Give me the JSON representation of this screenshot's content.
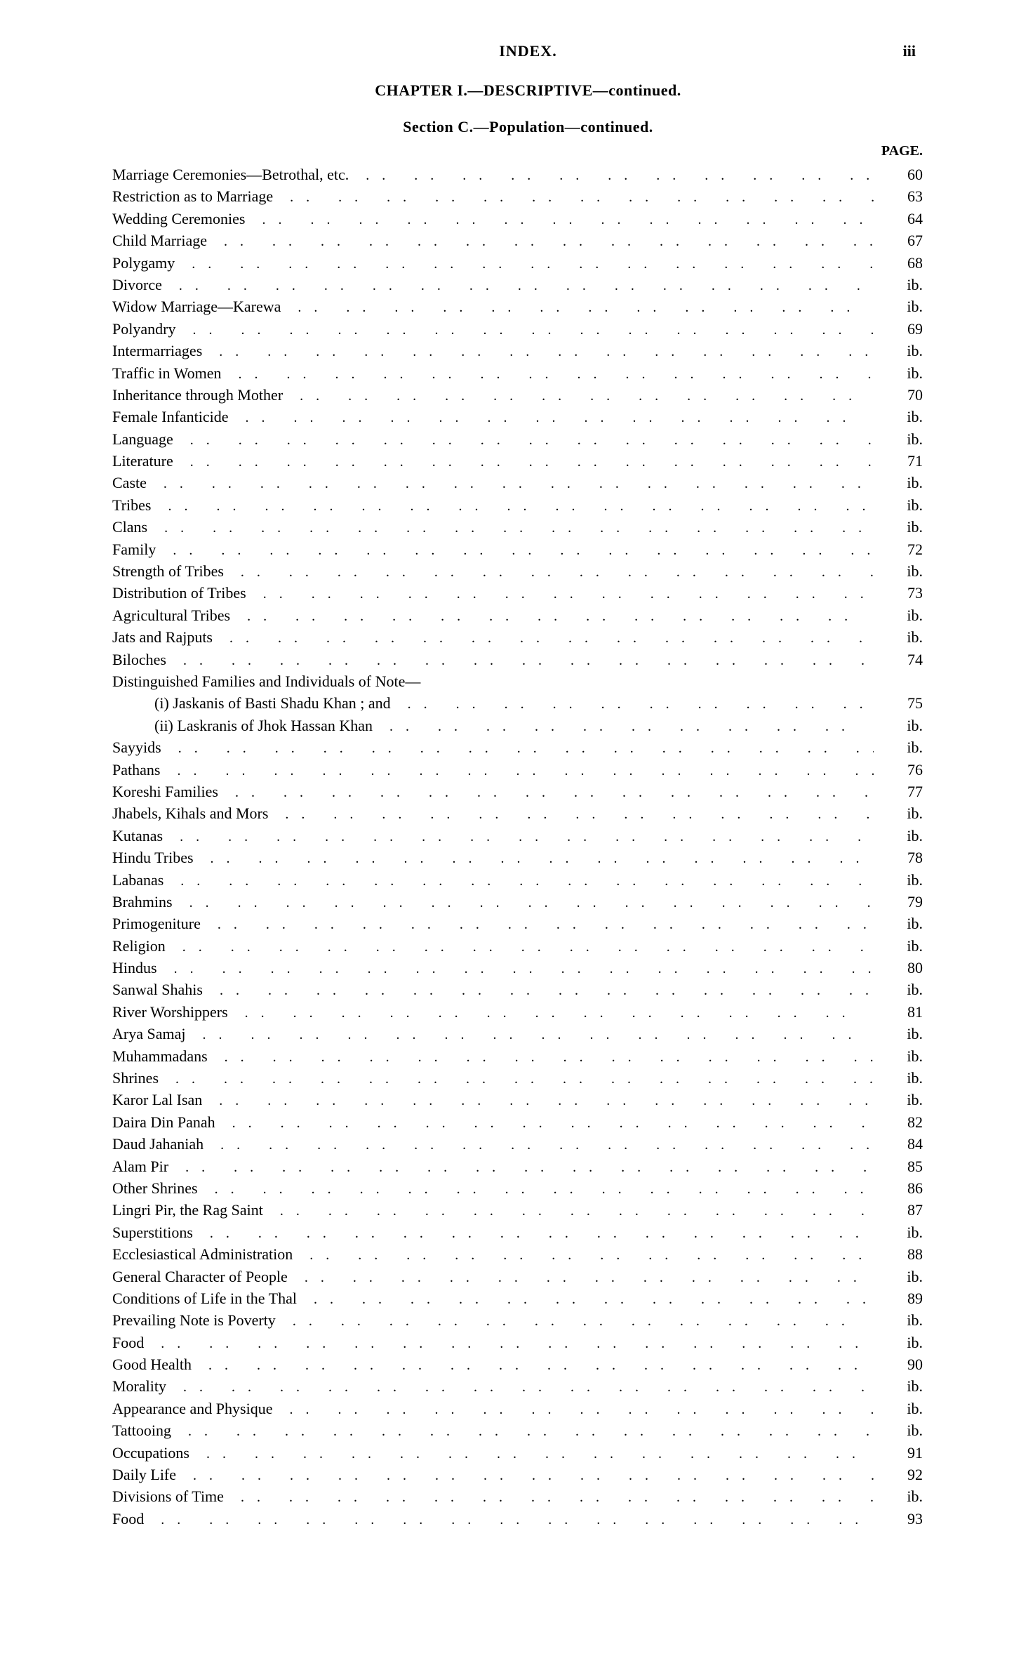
{
  "running_head": "INDEX.",
  "page_number_top": "iii",
  "chapter_line": "CHAPTER I.—DESCRIPTIVE—continued.",
  "section_line": "Section C.—Population—continued.",
  "page_column_head": "PAGE.",
  "leader_glyph": ".. .. .. .. .. .. .. .. .. .. .. .. .. .. .. .. ..",
  "entries": [
    {
      "label": "Marriage Ceremonies—Betrothal, etc.",
      "page": "60"
    },
    {
      "label": "Restriction as to Marriage",
      "page": "63"
    },
    {
      "label": "Wedding Ceremonies",
      "page": "64"
    },
    {
      "label": "Child Marriage",
      "page": "67"
    },
    {
      "label": "Polygamy",
      "page": "68"
    },
    {
      "label": "Divorce",
      "page": "ib."
    },
    {
      "label": "Widow Marriage—Karewa",
      "page": "ib."
    },
    {
      "label": "Polyandry",
      "page": "69"
    },
    {
      "label": "Intermarriages",
      "page": "ib."
    },
    {
      "label": "Traffic in Women",
      "page": "ib."
    },
    {
      "label": "Inheritance through Mother",
      "page": "70"
    },
    {
      "label": "Female Infanticide",
      "page": "ib."
    },
    {
      "label": "Language",
      "page": "ib."
    },
    {
      "label": "Literature",
      "page": "71"
    },
    {
      "label": "Caste",
      "page": "ib."
    },
    {
      "label": "Tribes",
      "page": "ib."
    },
    {
      "label": "Clans",
      "page": "ib."
    },
    {
      "label": "Family",
      "page": "72"
    },
    {
      "label": "Strength of Tribes",
      "page": "ib."
    },
    {
      "label": "Distribution of Tribes",
      "page": "73"
    },
    {
      "label": "Agricultural Tribes",
      "page": "ib."
    },
    {
      "label": "Jats and Rajputs",
      "page": "ib."
    },
    {
      "label": "Biloches",
      "page": "74"
    },
    {
      "label": "Distinguished Families and Individuals of Note—",
      "page": "",
      "no_leader": true
    },
    {
      "label": "(i) Jaskanis of Basti Shadu Khan ; and",
      "page": "75",
      "indent": true
    },
    {
      "label": "(ii) Laskranis of Jhok Hassan Khan",
      "page": "ib.",
      "indent": true
    },
    {
      "label": "Sayyids",
      "page": "ib."
    },
    {
      "label": "Pathans",
      "page": "76"
    },
    {
      "label": "Koreshi Families",
      "page": "77"
    },
    {
      "label": "Jhabels, Kihals and Mors",
      "page": "ib."
    },
    {
      "label": "Kutanas",
      "page": "ib."
    },
    {
      "label": "Hindu Tribes",
      "page": "78"
    },
    {
      "label": "Labanas",
      "page": "ib."
    },
    {
      "label": "Brahmins",
      "page": "79"
    },
    {
      "label": "Primogeniture",
      "page": "ib."
    },
    {
      "label": "Religion",
      "page": "ib."
    },
    {
      "label": "Hindus",
      "page": "80"
    },
    {
      "label": "Sanwal Shahis",
      "page": "ib."
    },
    {
      "label": "River Worshippers",
      "page": "81"
    },
    {
      "label": "Arya Samaj",
      "page": "ib."
    },
    {
      "label": "Muhammadans",
      "page": "ib."
    },
    {
      "label": "Shrines",
      "page": "ib."
    },
    {
      "label": "Karor Lal Isan",
      "page": "ib."
    },
    {
      "label": "Daira Din Panah",
      "page": "82"
    },
    {
      "label": "Daud Jahaniah",
      "page": "84"
    },
    {
      "label": "Alam Pir",
      "page": "85"
    },
    {
      "label": "Other Shrines",
      "page": "86"
    },
    {
      "label": "Lingri Pir, the Rag Saint",
      "page": "87"
    },
    {
      "label": "Superstitions",
      "page": "ib."
    },
    {
      "label": "Ecclesiastical Administration",
      "page": "88"
    },
    {
      "label": "General Character of People",
      "page": "ib."
    },
    {
      "label": "Conditions of Life in the Thal",
      "page": "89"
    },
    {
      "label": "Prevailing Note is Poverty",
      "page": "ib."
    },
    {
      "label": "Food",
      "page": "ib."
    },
    {
      "label": "Good Health",
      "page": "90"
    },
    {
      "label": "Morality",
      "page": "ib."
    },
    {
      "label": "Appearance and Physique",
      "page": "ib."
    },
    {
      "label": "Tattooing",
      "page": "ib."
    },
    {
      "label": "Occupations",
      "page": "91"
    },
    {
      "label": "Daily Life",
      "page": "92"
    },
    {
      "label": "Divisions of Time",
      "page": "ib."
    },
    {
      "label": "Food",
      "page": "93"
    }
  ]
}
